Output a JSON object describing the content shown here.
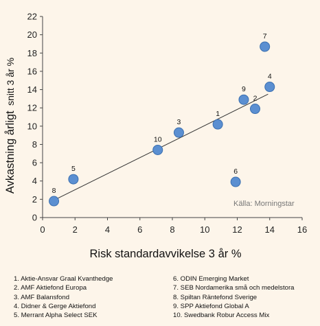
{
  "chart_data": {
    "type": "scatter",
    "xlabel": "Risk standardavvikelse 3 år %",
    "ylabel_main": "Avkastning årligt",
    "ylabel_small": "snitt 3 år %",
    "source_note": "Källa: Morningstar",
    "xlim": [
      0,
      16
    ],
    "ylim": [
      0,
      22
    ],
    "x_ticks": [
      0,
      2,
      4,
      6,
      8,
      10,
      12,
      14,
      16
    ],
    "y_ticks": [
      0,
      2,
      4,
      6,
      8,
      10,
      12,
      14,
      16,
      18,
      20,
      22
    ],
    "grid": false,
    "trendline": {
      "x1": 0.7,
      "y1": 1.9,
      "x2": 13.9,
      "y2": 13.5
    },
    "points": [
      {
        "label": "1",
        "x": 10.8,
        "y": 10.2
      },
      {
        "label": "2",
        "x": 13.1,
        "y": 11.9
      },
      {
        "label": "3",
        "x": 8.4,
        "y": 9.3
      },
      {
        "label": "4",
        "x": 14.0,
        "y": 14.3
      },
      {
        "label": "5",
        "x": 1.9,
        "y": 4.2
      },
      {
        "label": "6",
        "x": 11.9,
        "y": 3.9
      },
      {
        "label": "7",
        "x": 13.7,
        "y": 18.7
      },
      {
        "label": "8",
        "x": 0.7,
        "y": 1.8
      },
      {
        "label": "9",
        "x": 12.4,
        "y": 12.9
      },
      {
        "label": "10",
        "x": 7.1,
        "y": 7.4
      }
    ],
    "marker_color": "#5b8fd1",
    "marker_edge_color": "#3a6fb0",
    "line_color": "#333333"
  },
  "legend": {
    "col1": [
      "1. Aktie-Ansvar Graal Kvanthedge",
      "2. AMF Aktiefond Europa",
      "3. AMF Balansfond",
      "4. Didner & Gerge Aktiefond",
      "5. Merrant Alpha Select SEK"
    ],
    "col2": [
      "6. ODIN Emerging Market",
      "7. SEB Nordamerika små och medelstora",
      "8. Spiltan Räntefond Sverige",
      "9. SPP Aktiefond Global A",
      "10. Swedbank Robur Access Mix"
    ]
  }
}
